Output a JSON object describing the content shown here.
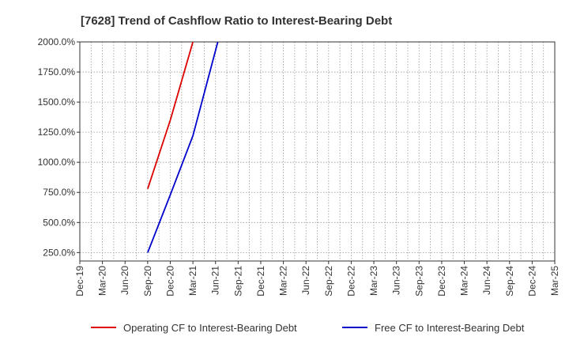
{
  "chart_data": {
    "type": "line",
    "title": "[7628]  Trend of Cashflow Ratio to Interest-Bearing Debt",
    "xlabel": "",
    "ylabel": "",
    "categories": [
      "Dec-19",
      "Mar-20",
      "Jun-20",
      "Sep-20",
      "Dec-20",
      "Mar-21",
      "Jun-21",
      "Sep-21",
      "Dec-21",
      "Mar-22",
      "Jun-22",
      "Sep-22",
      "Dec-22",
      "Mar-23",
      "Jun-23",
      "Sep-23",
      "Dec-23",
      "Mar-24",
      "Jun-24",
      "Sep-24",
      "Dec-24",
      "Mar-25"
    ],
    "y_ticks": [
      250,
      500,
      750,
      1000,
      1250,
      1500,
      1750,
      2000
    ],
    "y_tick_labels": [
      "250.0%",
      "500.0%",
      "750.0%",
      "1000.0%",
      "1250.0%",
      "1500.0%",
      "1750.0%",
      "2000.0%"
    ],
    "ylim": [
      180,
      2000
    ],
    "grid": true,
    "legend_position": "bottom",
    "series": [
      {
        "name": "Operating CF to Interest-Bearing Debt",
        "color": "#dd0000",
        "points": [
          {
            "x": 3,
            "y": 780
          },
          {
            "x": 4,
            "y": 1350
          },
          {
            "x": 5,
            "y": 2000
          }
        ]
      },
      {
        "name": "Free CF to Interest-Bearing Debt",
        "color": "#0000cc",
        "points": [
          {
            "x": 3,
            "y": 250
          },
          {
            "x": 4,
            "y": 730
          },
          {
            "x": 5,
            "y": 1220
          },
          {
            "x": 6.1,
            "y": 2000
          }
        ]
      }
    ]
  }
}
